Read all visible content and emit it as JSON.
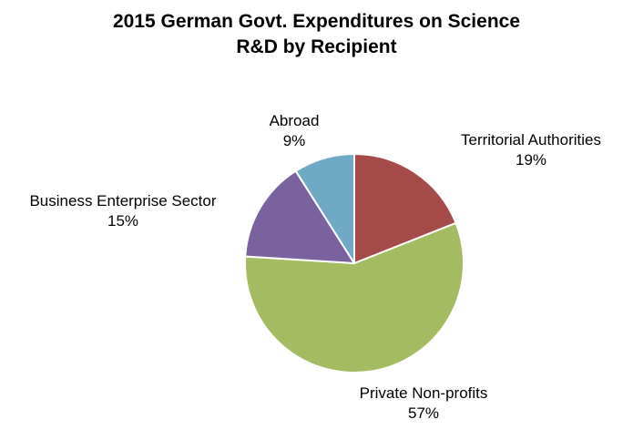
{
  "chart_data": {
    "type": "pie",
    "title_line1": "2015 German Govt. Expenditures on Science",
    "title_line2": "R&D by Recipient",
    "slices": [
      {
        "name": "Territorial Authorities",
        "value": 19,
        "label": "19%",
        "color": "#A44B4A"
      },
      {
        "name": "Private Non-profits",
        "value": 57,
        "label": "57%",
        "color": "#A4BB62"
      },
      {
        "name": "Business Enterprise Sector",
        "value": 15,
        "label": "15%",
        "color": "#7A629F"
      },
      {
        "name": "Abroad",
        "value": 9,
        "label": "9%",
        "color": "#70A9C4"
      }
    ],
    "start_angle_deg": 0,
    "direction": "clockwise"
  }
}
